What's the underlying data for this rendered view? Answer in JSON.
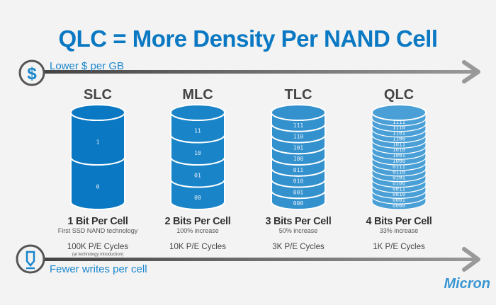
{
  "title": "QLC = More Density Per NAND Cell",
  "top_arrow": {
    "label": "Lower $ per GB",
    "icon": "dollar-icon"
  },
  "bottom_arrow": {
    "label": "Fewer writes per cell",
    "icon": "pencil-icon"
  },
  "colors": {
    "accent": "#0a78c2",
    "arrow": "#777777"
  },
  "cells": [
    {
      "name": "SLC",
      "bits": "1 Bit Per Cell",
      "subtitle": "First SSD NAND technology",
      "pe_cycles": "100K P/E Cycles",
      "note": "(at technology introduction)",
      "color": "#0a78c2",
      "levels": [
        "1",
        "0"
      ]
    },
    {
      "name": "MLC",
      "bits": "2 Bits Per Cell",
      "subtitle": "100% increase",
      "pe_cycles": "10K P/E Cycles",
      "color": "#1a84c8",
      "levels": [
        "11",
        "10",
        "01",
        "00"
      ]
    },
    {
      "name": "TLC",
      "bits": "3 Bits Per Cell",
      "subtitle": "50% increase",
      "pe_cycles": "3K P/E Cycles",
      "color": "#3391ce",
      "levels": [
        "111",
        "110",
        "101",
        "100",
        "011",
        "010",
        "001",
        "000"
      ]
    },
    {
      "name": "QLC",
      "bits": "4 Bits Per Cell",
      "subtitle": "33% increase",
      "pe_cycles": "1K P/E Cycles",
      "color": "#4aa0d6",
      "levels": [
        "1111",
        "1110",
        "1101",
        "1100",
        "1011",
        "1010",
        "1001",
        "1000",
        "0111",
        "0110",
        "0101",
        "0100",
        "0011",
        "0010",
        "0001",
        "0000"
      ]
    }
  ],
  "logo": "Micron"
}
